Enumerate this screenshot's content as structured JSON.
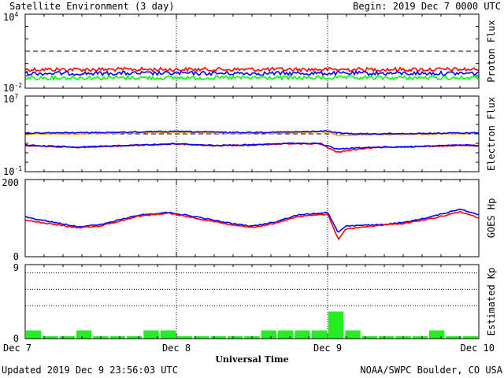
{
  "header": {
    "title": "Satellite Environment (3 day)",
    "begin": "Begin:  2019 Dec 7 0000 UTC"
  },
  "footer": {
    "updated": "Updated 2019 Dec  9 23:56:03 UTC",
    "credit": "NOAA/SWPC Boulder, CO USA",
    "xlabel": "Universal Time"
  },
  "colors": {
    "red": "#ff0000",
    "blue": "#0000ff",
    "green": "#00ff00",
    "orange": "#ffa500",
    "kp_bar": "#22ee22",
    "axes": "#000000"
  },
  "chart_data": [
    {
      "type": "line",
      "name": "proton",
      "ylabel": "Proton Flux",
      "yscale": "log",
      "ylim": [
        0.01,
        10000
      ],
      "ytick_labels": [
        {
          "mantissa": "10",
          "exp": "4",
          "value": 10000
        },
        {
          "mantissa": "10",
          "exp": "-2",
          "value": 0.01
        }
      ],
      "threshold": 10,
      "x_units": "days since 2019 Dec 7 0000 UTC",
      "series": [
        {
          "color": "red",
          "level": 0.33
        },
        {
          "color": "blue",
          "level": 0.16
        },
        {
          "color": "green",
          "level": 0.07
        }
      ]
    },
    {
      "type": "line",
      "name": "electron",
      "ylabel": "Electron Flux",
      "yscale": "log",
      "ylim": [
        0.1,
        10000000
      ],
      "ytick_labels": [
        {
          "mantissa": "10",
          "exp": "7",
          "value": 10000000
        },
        {
          "mantissa": "10",
          "exp": "-1",
          "value": 0.1
        }
      ],
      "threshold": 1000,
      "series": [
        {
          "color": "orange",
          "points": [
            [
              0,
              900
            ],
            [
              0.5,
              1100
            ],
            [
              1,
              1500
            ],
            [
              1.4,
              1100
            ],
            [
              1.8,
              1300
            ],
            [
              2.0,
              1600
            ],
            [
              2.08,
              600
            ],
            [
              2.2,
              800
            ],
            [
              2.6,
              900
            ],
            [
              3,
              1100
            ]
          ]
        },
        {
          "color": "blue",
          "points": [
            [
              0,
              1200
            ],
            [
              0.5,
              1400
            ],
            [
              1,
              1800
            ],
            [
              1.4,
              1400
            ],
            [
              1.8,
              1600
            ],
            [
              2.0,
              2000
            ],
            [
              2.08,
              1200
            ],
            [
              2.2,
              1000
            ],
            [
              2.6,
              1100
            ],
            [
              3,
              1300
            ]
          ]
        },
        {
          "color": "red",
          "points": [
            [
              0,
              60
            ],
            [
              0.35,
              35
            ],
            [
              0.65,
              55
            ],
            [
              1,
              85
            ],
            [
              1.25,
              55
            ],
            [
              1.5,
              65
            ],
            [
              1.75,
              95
            ],
            [
              1.95,
              90
            ],
            [
              2.06,
              12
            ],
            [
              2.3,
              35
            ],
            [
              2.6,
              45
            ],
            [
              2.9,
              60
            ],
            [
              3,
              55
            ]
          ]
        },
        {
          "color": "blue",
          "points": [
            [
              0,
              65
            ],
            [
              0.35,
              38
            ],
            [
              0.65,
              60
            ],
            [
              1,
              90
            ],
            [
              1.25,
              60
            ],
            [
              1.5,
              70
            ],
            [
              1.75,
              100
            ],
            [
              1.95,
              95
            ],
            [
              2.06,
              25
            ],
            [
              2.3,
              38
            ],
            [
              2.6,
              48
            ],
            [
              2.9,
              65
            ],
            [
              3,
              58
            ]
          ]
        }
      ]
    },
    {
      "type": "line",
      "name": "goes_hp",
      "ylabel": "GOES Hp",
      "ylim": [
        0,
        200
      ],
      "ytick_labels": [
        "200",
        "0"
      ],
      "series": [
        {
          "color": "blue",
          "points": [
            [
              0,
              103
            ],
            [
              0.15,
              92
            ],
            [
              0.35,
              78
            ],
            [
              0.5,
              83
            ],
            [
              0.75,
              108
            ],
            [
              0.95,
              115
            ],
            [
              1.15,
              102
            ],
            [
              1.35,
              87
            ],
            [
              1.5,
              79
            ],
            [
              1.65,
              90
            ],
            [
              1.8,
              108
            ],
            [
              2.0,
              115
            ],
            [
              2.04,
              85
            ],
            [
              2.07,
              63
            ],
            [
              2.12,
              80
            ],
            [
              2.3,
              82
            ],
            [
              2.5,
              88
            ],
            [
              2.7,
              105
            ],
            [
              2.88,
              124
            ],
            [
              3,
              108
            ]
          ]
        },
        {
          "color": "red",
          "points": [
            [
              0,
              95
            ],
            [
              0.15,
              86
            ],
            [
              0.35,
              75
            ],
            [
              0.5,
              80
            ],
            [
              0.75,
              105
            ],
            [
              0.95,
              113
            ],
            [
              1.15,
              98
            ],
            [
              1.35,
              84
            ],
            [
              1.5,
              76
            ],
            [
              1.65,
              86
            ],
            [
              1.8,
              104
            ],
            [
              2.0,
              110
            ],
            [
              2.04,
              75
            ],
            [
              2.07,
              45
            ],
            [
              2.12,
              72
            ],
            [
              2.3,
              80
            ],
            [
              2.5,
              86
            ],
            [
              2.7,
              100
            ],
            [
              2.88,
              117
            ],
            [
              3,
              100
            ]
          ]
        }
      ]
    },
    {
      "type": "bar",
      "name": "kp",
      "ylabel": "Estimated Kp",
      "ylim": [
        0,
        9
      ],
      "ytick_labels": [
        "9",
        "0"
      ],
      "dotted_levels": [
        4,
        6,
        8
      ],
      "values": [
        1,
        0.3,
        0.3,
        1,
        0.3,
        0.3,
        0.3,
        1,
        1,
        0.3,
        0.3,
        0.3,
        0.3,
        0.3,
        1,
        1,
        1,
        1,
        3.3,
        1,
        0.3,
        0.3,
        0.3,
        0.3,
        1,
        0.3,
        0.3
      ]
    }
  ],
  "x_axis": {
    "xlim": [
      0,
      3
    ],
    "tick_labels": [
      "Dec 7",
      "Dec 8",
      "Dec 9",
      "Dec 10"
    ],
    "day_dividers": [
      1,
      2
    ]
  }
}
